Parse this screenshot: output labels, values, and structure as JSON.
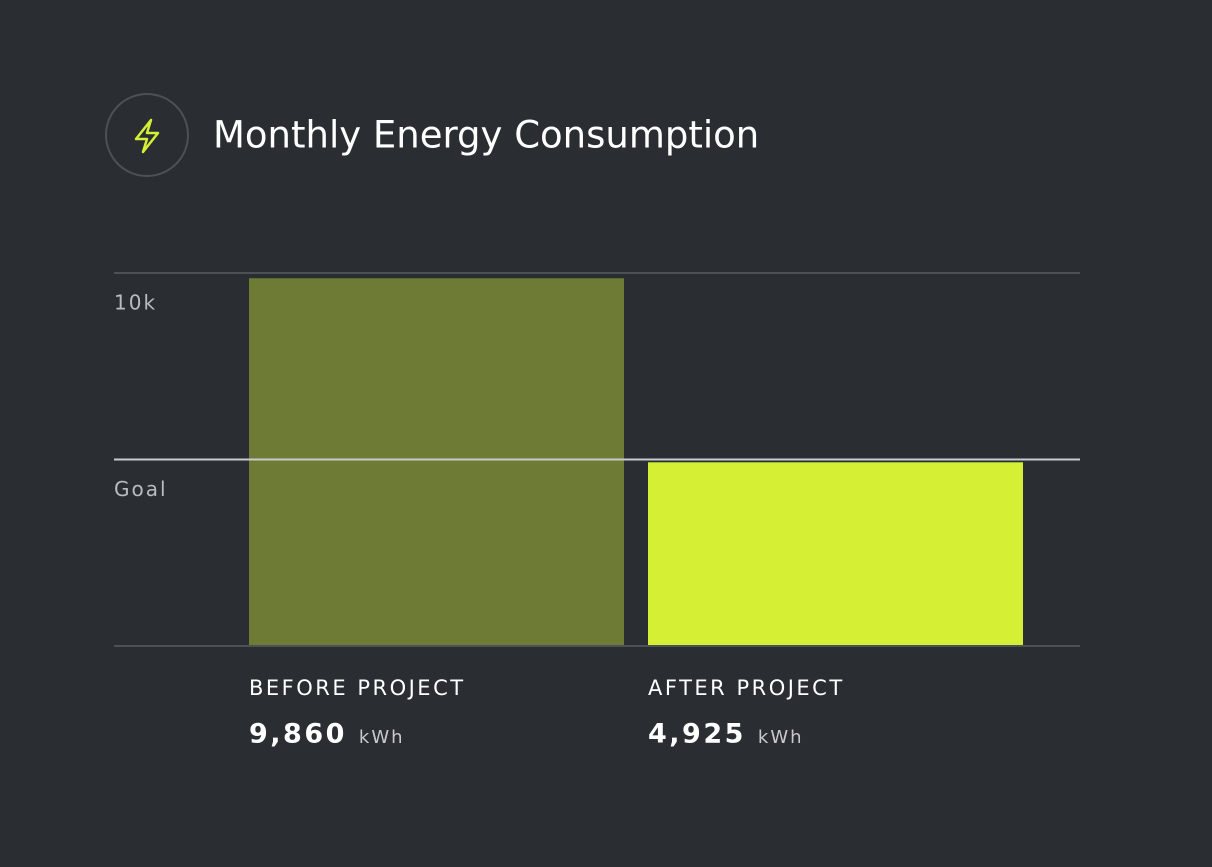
{
  "chart_data": {
    "type": "bar",
    "title": "Monthly Energy Consumption",
    "categories": [
      "BEFORE PROJECT",
      "AFTER PROJECT"
    ],
    "values": [
      9860,
      4925
    ],
    "value_labels": [
      "9,860",
      "4,925"
    ],
    "unit": "kWh",
    "colors": [
      "#6e7b34",
      "#d4ef34"
    ],
    "ylim": [
      0,
      10000
    ],
    "yticks": [
      {
        "value": 10000,
        "label": "10k"
      },
      {
        "value": 5000,
        "label": "Goal"
      }
    ],
    "grid": true
  }
}
